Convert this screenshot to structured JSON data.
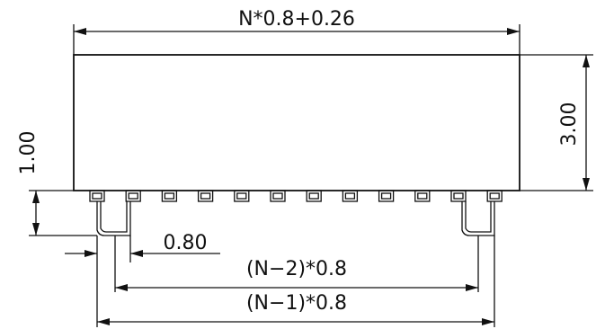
{
  "dimensions": {
    "overall_width": "N*0.8+0.26",
    "body_height": "3.00",
    "standoff_height": "1.00",
    "pitch": "0.80",
    "span_n_minus_2": "(N−2)*0.8",
    "span_n_minus_1": "(N−1)*0.8"
  },
  "pins": {
    "visible_count": 12
  },
  "colors": {
    "line": "#111111",
    "background": "#ffffff"
  }
}
